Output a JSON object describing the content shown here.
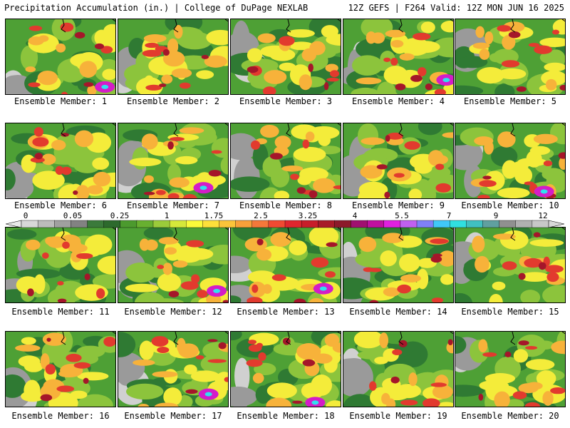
{
  "header": {
    "left": "Precipitation Accumulation (in.) | College of DuPage NEXLAB",
    "right": "12Z GEFS | F264 Valid: 12Z MON JUN 16 2025"
  },
  "member_prefix": "Ensemble Member: ",
  "members": [
    "1",
    "2",
    "3",
    "4",
    "5",
    "6",
    "7",
    "8",
    "9",
    "10",
    "11",
    "12",
    "13",
    "14",
    "15",
    "16",
    "17",
    "18",
    "19",
    "20"
  ],
  "colorbar": {
    "tick_labels": [
      "0",
      "0.05",
      "0.25",
      "1",
      "1.75",
      "2.5",
      "3.25",
      "4",
      "5.5",
      "7",
      "9",
      "12"
    ],
    "colors": [
      "#d8d8d8",
      "#bcbcbc",
      "#a0a0a0",
      "#828282",
      "#3b7a3b",
      "#2d6a2d",
      "#4c9a2e",
      "#68b030",
      "#9bcb3a",
      "#d6e83a",
      "#fbfb3a",
      "#fde03a",
      "#fbc43a",
      "#f8a03a",
      "#f5783a",
      "#f04a32",
      "#e0262e",
      "#c81e2a",
      "#a81c28",
      "#8c1a2a",
      "#a01070",
      "#c010a0",
      "#e020e0",
      "#c060f0",
      "#8080f8",
      "#40c8f8",
      "#30e0e0",
      "#40c0c0",
      "#60a0a0",
      "#909090",
      "#b0b0b0",
      "#c8c8c8"
    ]
  },
  "palette": {
    "gray_light": "#d0d0d0",
    "gray": "#9a9a9a",
    "green_dark": "#2f7a33",
    "green": "#4ea035",
    "green_light": "#8cc43c",
    "yellow": "#f4ec3a",
    "orange": "#f7b23a",
    "red": "#e23a2e",
    "dark_red": "#a5162a",
    "magenta": "#d41cc8",
    "cyan": "#30e0f0"
  }
}
